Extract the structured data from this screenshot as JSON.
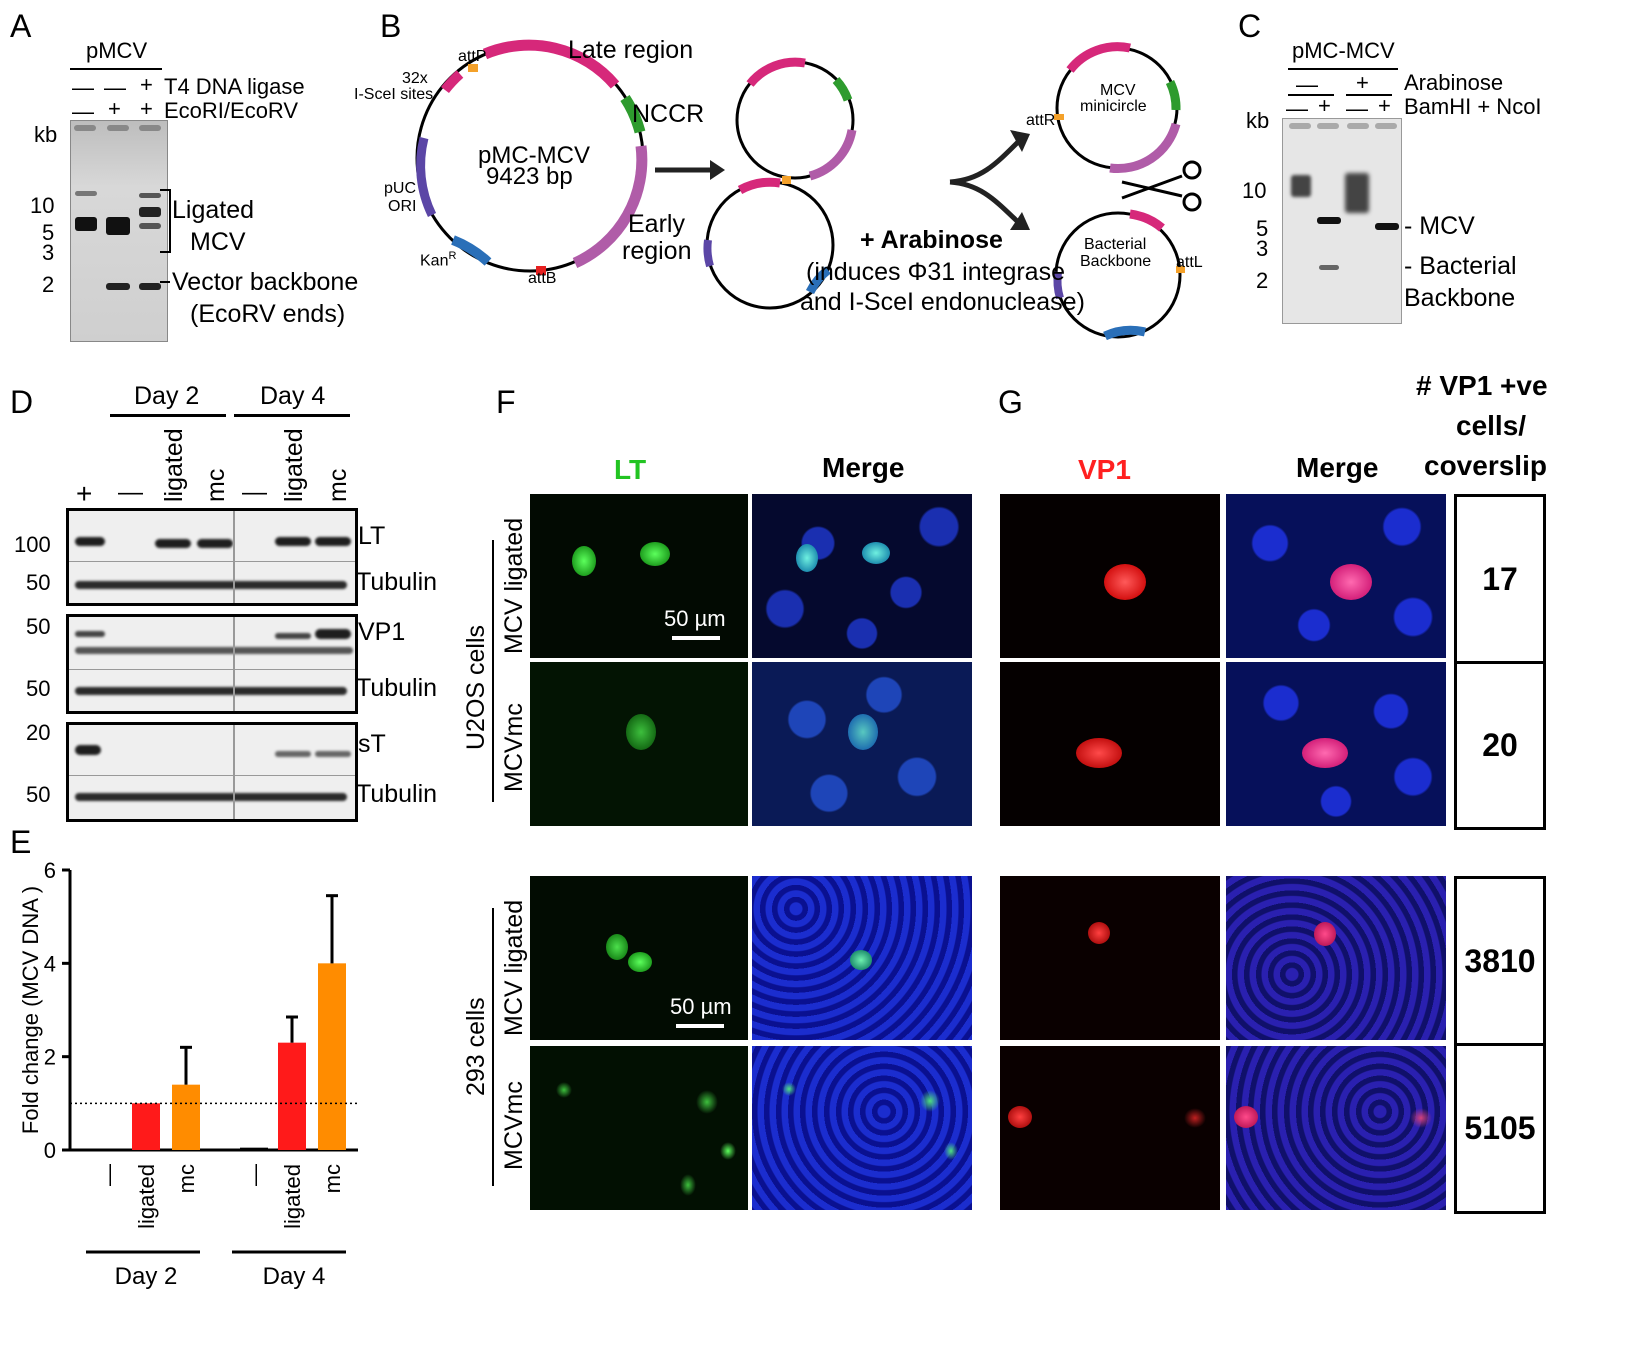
{
  "panel_letters": {
    "a": "A",
    "b": "B",
    "c": "C",
    "d": "D",
    "e": "E",
    "f": "F",
    "g": "G"
  },
  "panel_a": {
    "title": "pMCV",
    "row1_label": "T4 DNA ligase",
    "row1_signs": [
      "—",
      "—",
      "+"
    ],
    "row2_label": "EcoRI/EcoRV",
    "row2_signs": [
      "—",
      "+",
      "+"
    ],
    "kb_label": "kb",
    "markers": [
      "10",
      "5",
      "3",
      "2"
    ],
    "ligated_label_1": "Ligated",
    "ligated_label_2": "MCV",
    "vector_label_1": "Vector backbone",
    "vector_label_2": "(EcoRV ends)"
  },
  "panel_b": {
    "plasmid_name": "pMC-MCV",
    "plasmid_size": "9423 bp",
    "attP": "attP",
    "scei_sites_1": "32x",
    "scei_sites_2": "I-SceI sites",
    "late_region": "Late region",
    "nccr": "NCCR",
    "puc_1": "pUC",
    "puc_2": "ORI",
    "early_1": "Early",
    "early_2": "region",
    "kan": "Kan",
    "kan_sup": "R",
    "attB": "attB",
    "arabinose": "+ Arabinose",
    "induces_1": "(induces Φ31 integrase",
    "induces_2": "and I-SceI endonuclease)",
    "attR": "attR",
    "mcv_minicircle_1": "MCV",
    "mcv_minicircle_2": "minicircle",
    "bacterial_1": "Bacterial",
    "bacterial_2": "Backbone",
    "attL": "attL"
  },
  "panel_c": {
    "title": "pMC-MCV",
    "row1_label": "Arabinose",
    "row1_signs": [
      "—",
      "+"
    ],
    "row2_label": "BamHI + NcoI",
    "row2_signs": [
      "—",
      "+",
      "—",
      "+"
    ],
    "kb_label": "kb",
    "markers": [
      "10",
      "5",
      "3",
      "2"
    ],
    "mcv_label": "- MCV",
    "bact_label_1": "- Bacterial",
    "bact_label_2": "Backbone"
  },
  "panel_d": {
    "day2": "Day 2",
    "day4": "Day 4",
    "lanes": [
      "+",
      "—",
      "ligated",
      "mc",
      "—",
      "ligated",
      "mc"
    ],
    "blots": [
      {
        "marker_top": "100",
        "label_top": "LT",
        "marker_bottom": "50",
        "label_bottom": "Tubulin"
      },
      {
        "marker_top": "50",
        "label_top": "VP1",
        "marker_bottom": "50",
        "label_bottom": "Tubulin"
      },
      {
        "marker_top": "20",
        "label_top": "sT",
        "marker_bottom": "50",
        "label_bottom": "Tubulin"
      }
    ]
  },
  "chart_data": {
    "type": "bar",
    "categories": [
      "—",
      "ligated",
      "mc",
      "—",
      "ligated",
      "mc"
    ],
    "groups": [
      "Day 2",
      "Day 4"
    ],
    "values": [
      0.0,
      1.0,
      1.4,
      0.05,
      2.3,
      4.0
    ],
    "errors": [
      0.0,
      0.0,
      0.8,
      0.0,
      0.55,
      1.45
    ],
    "colors": [
      "#000000",
      "#ff1a1a",
      "#ff8c00",
      "#000000",
      "#ff1a1a",
      "#ff8c00"
    ],
    "ylabel": "Fold change (MCV DNA )",
    "ylim": [
      0,
      6
    ],
    "yticks": [
      "0",
      "2",
      "4",
      "6"
    ],
    "reference_line": 1.0
  },
  "panel_f": {
    "lt": "LT",
    "merge": "Merge",
    "u2os": "U2OS cells",
    "cells293": "293 cells",
    "row_ligated": "MCV ligated",
    "row_mc": "MCVmc",
    "scale_bar": "50 µm"
  },
  "panel_g": {
    "vp1": "VP1",
    "merge": "Merge",
    "count_header_1": "# VP1 +ve",
    "count_header_2": "cells/",
    "count_header_3": "coverslip",
    "counts": [
      "17",
      "20",
      "3810",
      "5105"
    ]
  },
  "colors": {
    "ligated": "#ff1a1a",
    "mc": "#ff8c00",
    "lt_green": "#22c422",
    "vp1_red": "#ff2020",
    "magenta": "#d6287a",
    "green": "#2e9b2e",
    "purple": "#5b46a6",
    "blue": "#2a6fb8",
    "orange": "#f4a12a"
  }
}
